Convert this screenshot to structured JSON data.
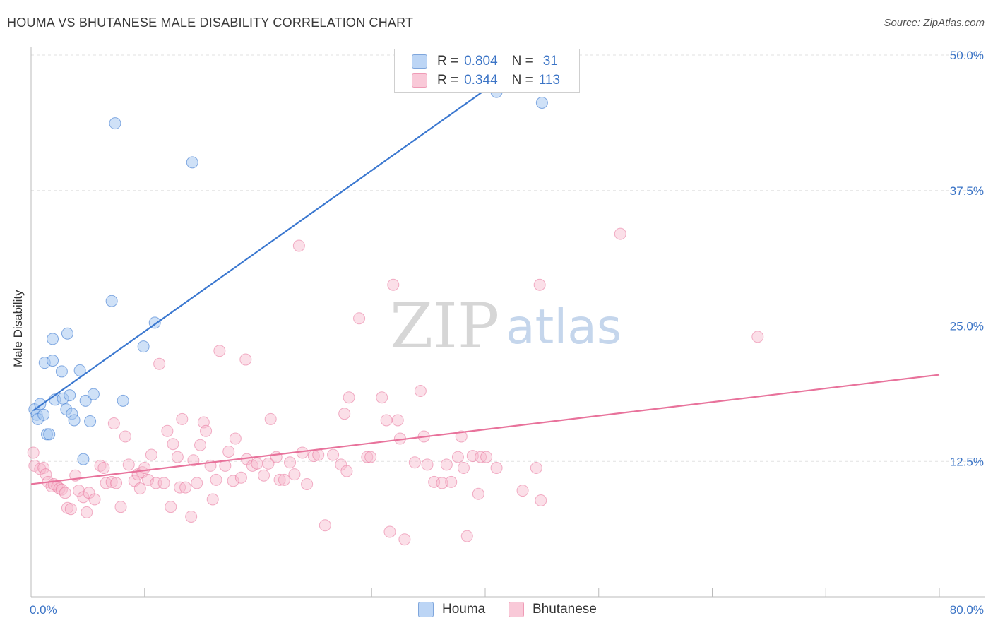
{
  "title": "HOUMA VS BHUTANESE MALE DISABILITY CORRELATION CHART",
  "source": "Source: ZipAtlas.com",
  "watermark": {
    "zip": "ZIP",
    "atlas": "atlas"
  },
  "legend_top": [
    {
      "r_label": "R =",
      "r_value": "0.804",
      "n_label": "N =",
      "n_value": "31",
      "color": "#a8c8f0"
    },
    {
      "r_label": "R =",
      "r_value": "0.344",
      "n_label": "N =",
      "n_value": "113",
      "color": "#f6b8cc"
    }
  ],
  "legend_bottom": [
    "Houma",
    "Bhutanese"
  ],
  "chart_data": {
    "type": "scatter",
    "title": "HOUMA VS BHUTANESE MALE DISABILITY CORRELATION CHART",
    "xlabel": "",
    "ylabel": "Male Disability",
    "xlim": [
      0,
      80
    ],
    "ylim": [
      0,
      50
    ],
    "x_tick_labels": [
      "0.0%",
      "80.0%"
    ],
    "y_ticks": [
      12.5,
      25.0,
      37.5,
      50.0
    ],
    "y_tick_labels": [
      "12.5%",
      "25.0%",
      "37.5%",
      "50.0%"
    ],
    "grid": true,
    "colors": {
      "houma": "#3b78d0",
      "houma_fill": "#a8c8f0",
      "bhutanese": "#e8729b",
      "bhutanese_fill": "#f6b8cc",
      "tick_label": "#3b74c6"
    },
    "series": [
      {
        "name": "Houma",
        "trend": [
          [
            0.2,
            17.2
          ],
          [
            45.0,
            50.5
          ]
        ],
        "points": [
          [
            0.3,
            17.3
          ],
          [
            0.5,
            16.8
          ],
          [
            0.6,
            16.4
          ],
          [
            0.8,
            17.8
          ],
          [
            1.1,
            16.8
          ],
          [
            1.2,
            21.6
          ],
          [
            1.4,
            15.0
          ],
          [
            1.6,
            15.0
          ],
          [
            1.9,
            23.8
          ],
          [
            1.9,
            21.8
          ],
          [
            2.1,
            18.2
          ],
          [
            2.7,
            20.8
          ],
          [
            2.8,
            18.3
          ],
          [
            3.1,
            17.3
          ],
          [
            3.2,
            24.3
          ],
          [
            3.4,
            18.6
          ],
          [
            3.6,
            16.9
          ],
          [
            3.8,
            16.3
          ],
          [
            4.3,
            20.9
          ],
          [
            4.6,
            12.7
          ],
          [
            4.8,
            18.1
          ],
          [
            5.2,
            16.2
          ],
          [
            5.5,
            18.7
          ],
          [
            7.1,
            27.3
          ],
          [
            7.4,
            43.7
          ],
          [
            8.1,
            18.1
          ],
          [
            9.9,
            23.1
          ],
          [
            10.9,
            25.3
          ],
          [
            14.2,
            40.1
          ],
          [
            41.0,
            46.6
          ],
          [
            45.0,
            45.6
          ]
        ]
      },
      {
        "name": "Bhutanese",
        "trend": [
          [
            0.0,
            10.4
          ],
          [
            80.0,
            20.5
          ]
        ],
        "points": [
          [
            0.2,
            13.3
          ],
          [
            0.3,
            12.1
          ],
          [
            0.8,
            11.8
          ],
          [
            1.1,
            11.9
          ],
          [
            1.3,
            11.3
          ],
          [
            1.5,
            10.6
          ],
          [
            1.8,
            10.2
          ],
          [
            2.0,
            10.4
          ],
          [
            2.3,
            10.2
          ],
          [
            2.5,
            10.0
          ],
          [
            2.7,
            9.9
          ],
          [
            3.0,
            9.6
          ],
          [
            3.2,
            8.2
          ],
          [
            3.5,
            8.1
          ],
          [
            3.9,
            11.2
          ],
          [
            4.2,
            9.8
          ],
          [
            4.6,
            9.2
          ],
          [
            4.9,
            7.8
          ],
          [
            5.1,
            9.6
          ],
          [
            5.6,
            9.0
          ],
          [
            6.1,
            12.1
          ],
          [
            6.4,
            11.9
          ],
          [
            6.6,
            10.5
          ],
          [
            7.1,
            10.6
          ],
          [
            7.3,
            16.0
          ],
          [
            7.5,
            10.5
          ],
          [
            7.9,
            8.3
          ],
          [
            8.3,
            14.8
          ],
          [
            8.6,
            12.2
          ],
          [
            9.1,
            10.7
          ],
          [
            9.4,
            11.3
          ],
          [
            9.6,
            10.0
          ],
          [
            9.8,
            11.5
          ],
          [
            10.0,
            11.9
          ],
          [
            10.3,
            10.8
          ],
          [
            10.6,
            13.1
          ],
          [
            11.0,
            10.5
          ],
          [
            11.3,
            21.5
          ],
          [
            11.7,
            10.5
          ],
          [
            12.0,
            15.3
          ],
          [
            12.3,
            8.3
          ],
          [
            12.5,
            14.1
          ],
          [
            12.9,
            12.9
          ],
          [
            13.1,
            10.1
          ],
          [
            13.3,
            16.4
          ],
          [
            13.6,
            10.1
          ],
          [
            14.1,
            7.4
          ],
          [
            14.3,
            12.6
          ],
          [
            14.6,
            10.5
          ],
          [
            14.9,
            14.0
          ],
          [
            15.2,
            16.1
          ],
          [
            15.4,
            15.3
          ],
          [
            15.8,
            12.1
          ],
          [
            16.0,
            9.0
          ],
          [
            16.3,
            10.8
          ],
          [
            16.6,
            22.7
          ],
          [
            17.1,
            12.1
          ],
          [
            17.4,
            13.4
          ],
          [
            17.8,
            10.7
          ],
          [
            18.0,
            14.6
          ],
          [
            18.5,
            11.0
          ],
          [
            18.9,
            21.9
          ],
          [
            19.0,
            12.7
          ],
          [
            19.5,
            12.1
          ],
          [
            19.9,
            12.3
          ],
          [
            20.5,
            11.2
          ],
          [
            20.9,
            12.3
          ],
          [
            21.1,
            16.4
          ],
          [
            21.6,
            12.9
          ],
          [
            21.9,
            10.8
          ],
          [
            22.3,
            10.8
          ],
          [
            22.8,
            12.4
          ],
          [
            23.2,
            11.3
          ],
          [
            23.6,
            32.4
          ],
          [
            23.9,
            13.3
          ],
          [
            24.3,
            10.4
          ],
          [
            24.9,
            13.0
          ],
          [
            25.3,
            13.1
          ],
          [
            25.9,
            6.6
          ],
          [
            26.6,
            13.1
          ],
          [
            27.3,
            12.2
          ],
          [
            27.6,
            16.9
          ],
          [
            27.8,
            11.6
          ],
          [
            28.0,
            18.4
          ],
          [
            28.9,
            25.7
          ],
          [
            29.6,
            12.9
          ],
          [
            29.9,
            12.9
          ],
          [
            30.9,
            18.4
          ],
          [
            31.3,
            16.3
          ],
          [
            31.6,
            6.0
          ],
          [
            31.9,
            28.8
          ],
          [
            32.3,
            16.3
          ],
          [
            32.5,
            14.6
          ],
          [
            32.9,
            5.3
          ],
          [
            33.8,
            12.4
          ],
          [
            34.3,
            19.0
          ],
          [
            34.6,
            14.8
          ],
          [
            34.9,
            12.2
          ],
          [
            35.5,
            10.6
          ],
          [
            36.2,
            10.5
          ],
          [
            36.6,
            12.2
          ],
          [
            37.0,
            10.6
          ],
          [
            37.6,
            12.9
          ],
          [
            37.9,
            14.8
          ],
          [
            38.1,
            11.9
          ],
          [
            38.4,
            5.6
          ],
          [
            38.9,
            13.0
          ],
          [
            39.4,
            9.5
          ],
          [
            39.6,
            12.9
          ],
          [
            40.1,
            12.9
          ],
          [
            41.0,
            11.9
          ],
          [
            44.5,
            11.9
          ],
          [
            44.8,
            28.8
          ]
        ]
      }
    ],
    "extra_points_bhutanese": [
      [
        43.3,
        9.8
      ],
      [
        44.9,
        8.9
      ],
      [
        51.9,
        33.5
      ],
      [
        64.0,
        24.0
      ]
    ]
  }
}
